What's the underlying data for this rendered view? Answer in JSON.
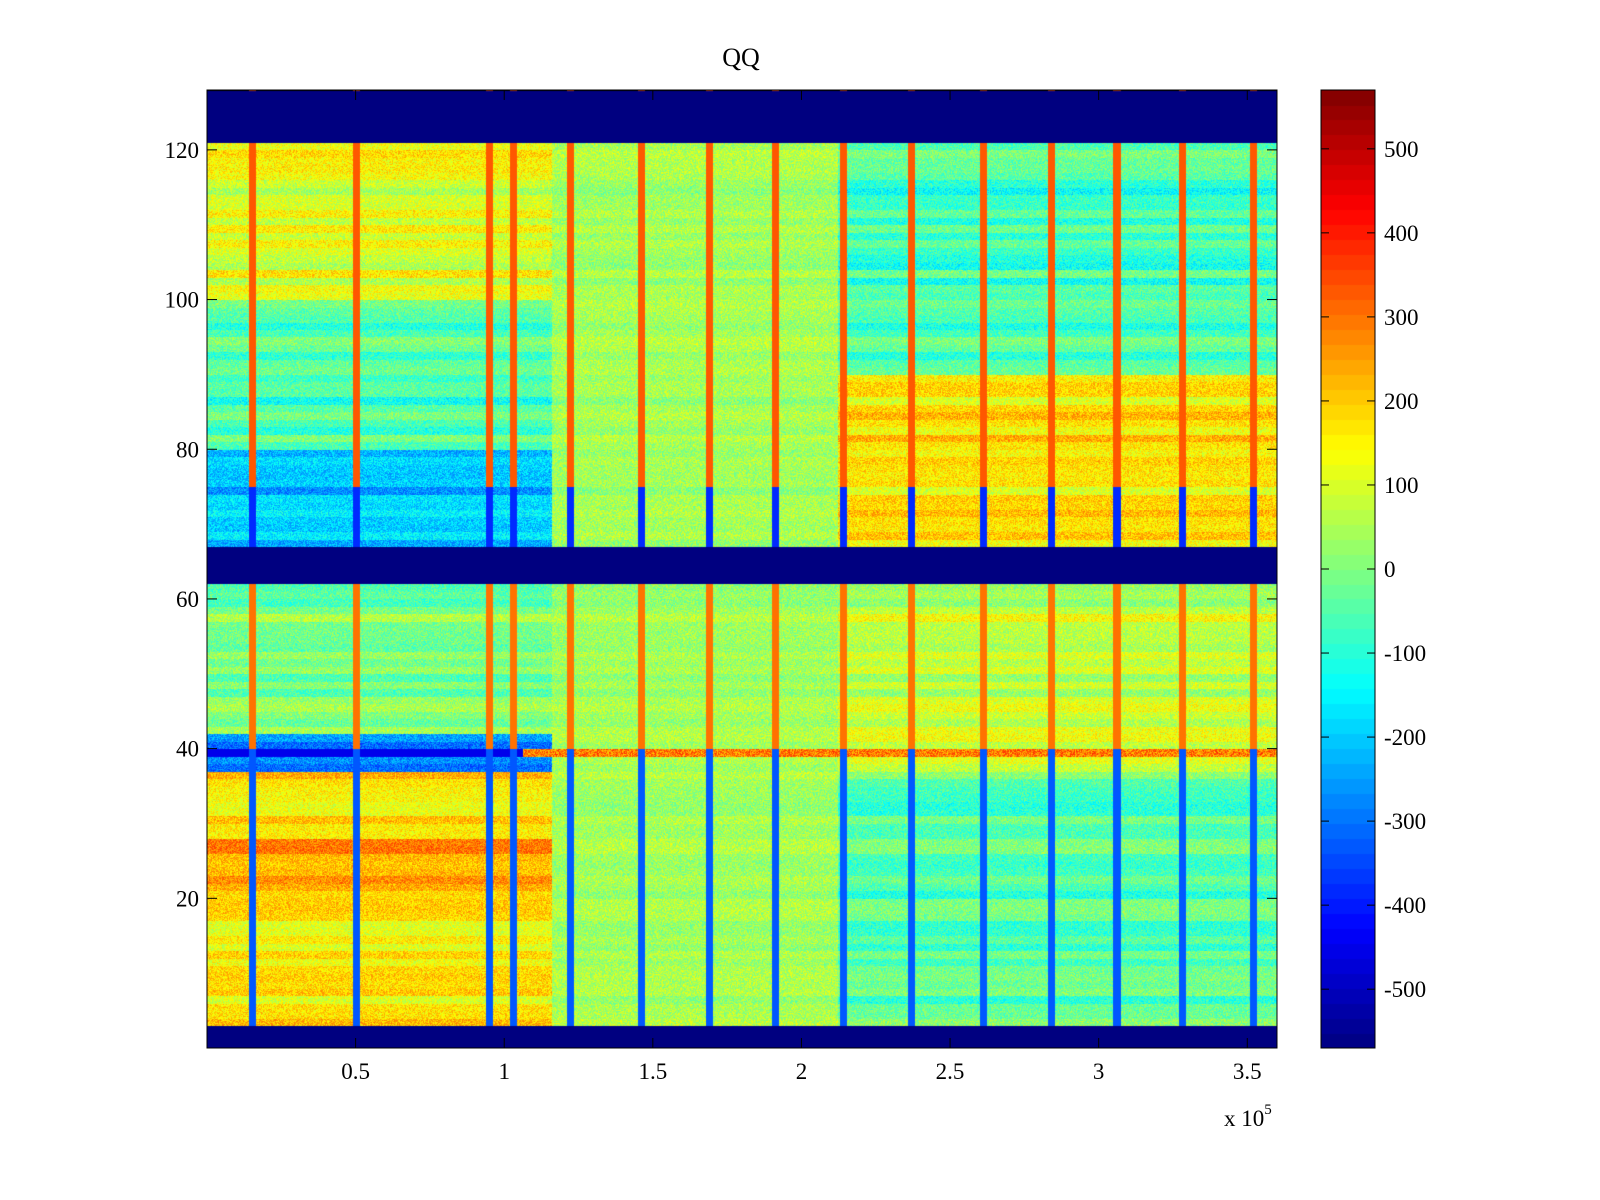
{
  "chart_data": {
    "type": "heatmap",
    "title": "QQ",
    "xlabel": "",
    "ylabel": "",
    "x_exponent_label": "x 10",
    "x_exponent_power": "5",
    "xlim": [
      0,
      3.6
    ],
    "ylim": [
      0,
      128
    ],
    "xticks": [
      {
        "value": 0.5,
        "label": "0.5"
      },
      {
        "value": 1,
        "label": "1"
      },
      {
        "value": 1.5,
        "label": "1.5"
      },
      {
        "value": 2,
        "label": "2"
      },
      {
        "value": 2.5,
        "label": "2.5"
      },
      {
        "value": 3,
        "label": "3"
      },
      {
        "value": 3.5,
        "label": "3.5"
      }
    ],
    "yticks": [
      {
        "value": 20,
        "label": "20"
      },
      {
        "value": 40,
        "label": "40"
      },
      {
        "value": 60,
        "label": "60"
      },
      {
        "value": 80,
        "label": "80"
      },
      {
        "value": 100,
        "label": "100"
      },
      {
        "value": 120,
        "label": "120"
      }
    ],
    "colorbar": {
      "colormap": "jet",
      "clim": [
        -570,
        570
      ],
      "ticks": [
        {
          "value": 500,
          "label": "500"
        },
        {
          "value": 400,
          "label": "400"
        },
        {
          "value": 300,
          "label": "300"
        },
        {
          "value": 200,
          "label": "200"
        },
        {
          "value": 100,
          "label": "100"
        },
        {
          "value": 0,
          "label": "0"
        },
        {
          "value": -100,
          "label": "-100"
        },
        {
          "value": -200,
          "label": "-200"
        },
        {
          "value": -300,
          "label": "-300"
        },
        {
          "value": -400,
          "label": "-400"
        },
        {
          "value": -500,
          "label": "-500"
        }
      ]
    },
    "empty_row_bands": [
      [
        0,
        3
      ],
      [
        62,
        67
      ],
      [
        121,
        128
      ]
    ],
    "segment_boundaries_x": [
      1.16,
      2.12
    ],
    "vertical_stripes_x": [
      0.15,
      0.5,
      0.95,
      1.03,
      1.22,
      1.46,
      1.69,
      1.91,
      2.14,
      2.37,
      2.61,
      2.84,
      3.06,
      3.28,
      3.52
    ],
    "highlight_row": {
      "y": 39,
      "value_left": -450,
      "value_right": 250
    },
    "region_means": [
      {
        "x_range": [
          0,
          1.16
        ],
        "y_range": [
          3,
          20
        ],
        "mean": 150
      },
      {
        "x_range": [
          0,
          1.16
        ],
        "y_range": [
          20,
          28
        ],
        "mean": 240
      },
      {
        "x_range": [
          0,
          1.16
        ],
        "y_range": [
          28,
          37
        ],
        "mean": 170
      },
      {
        "x_range": [
          0,
          1.16
        ],
        "y_range": [
          37,
          42
        ],
        "mean": -300
      },
      {
        "x_range": [
          0,
          1.16
        ],
        "y_range": [
          42,
          62
        ],
        "mean": 0
      },
      {
        "x_range": [
          0,
          1.16
        ],
        "y_range": [
          67,
          80
        ],
        "mean": -200
      },
      {
        "x_range": [
          0,
          1.16
        ],
        "y_range": [
          80,
          100
        ],
        "mean": -60
      },
      {
        "x_range": [
          0,
          1.16
        ],
        "y_range": [
          100,
          121
        ],
        "mean": 110
      },
      {
        "x_range": [
          1.16,
          2.12
        ],
        "y_range": [
          3,
          121
        ],
        "mean": 40
      },
      {
        "x_range": [
          2.12,
          3.6
        ],
        "y_range": [
          3,
          37
        ],
        "mean": -50
      },
      {
        "x_range": [
          2.12,
          3.6
        ],
        "y_range": [
          37,
          62
        ],
        "mean": 80
      },
      {
        "x_range": [
          2.12,
          3.6
        ],
        "y_range": [
          67,
          90
        ],
        "mean": 170
      },
      {
        "x_range": [
          2.12,
          3.6
        ],
        "y_range": [
          90,
          121
        ],
        "mean": -70
      }
    ]
  }
}
